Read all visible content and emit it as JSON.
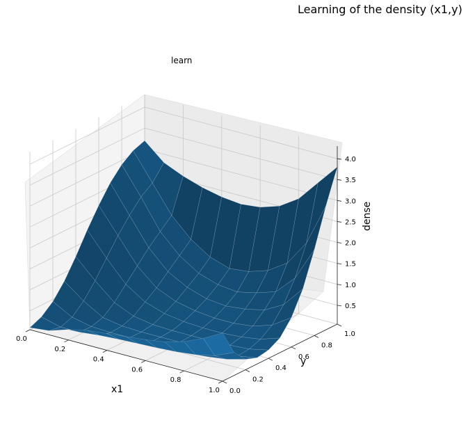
{
  "figure": {
    "suptitle": "Learning of the density (x1,y)",
    "axes_title": "learn"
  },
  "chart_data": {
    "type": "surface3d",
    "title": "learn",
    "xlabel": "x1",
    "ylabel": "y",
    "zlabel": "dense",
    "xlim": [
      0.0,
      1.0
    ],
    "ylim": [
      0.0,
      1.0
    ],
    "zlim": [
      0.05,
      4.3
    ],
    "x_ticks": [
      "0.0",
      "0.2",
      "0.4",
      "0.6",
      "0.8",
      "1.0"
    ],
    "y_ticks": [
      "0.0",
      "0.2",
      "0.4",
      "0.6",
      "0.8",
      "1.0"
    ],
    "z_ticks": [
      "0.5",
      "1.0",
      "1.5",
      "2.0",
      "2.5",
      "3.0",
      "3.5",
      "4.0"
    ],
    "grid": true,
    "surface_color": "#1f77b4",
    "x_grid": [
      0.0,
      0.1,
      0.2,
      0.3,
      0.4,
      0.5,
      0.6,
      0.7,
      0.8,
      0.9,
      1.0
    ],
    "y_grid": [
      0.0,
      0.1,
      0.2,
      0.3,
      0.4,
      0.5,
      0.6,
      0.7,
      0.8,
      0.9,
      1.0
    ],
    "z": [
      [
        0.1,
        0.22,
        0.45,
        0.8,
        1.25,
        1.75,
        2.2,
        2.6,
        2.9,
        3.1,
        3.2
      ],
      [
        0.15,
        0.1,
        0.2,
        0.45,
        0.8,
        1.2,
        1.6,
        1.95,
        2.25,
        2.45,
        2.8
      ],
      [
        0.3,
        0.1,
        0.1,
        0.18,
        0.4,
        0.7,
        1.0,
        1.3,
        1.55,
        1.8,
        2.6
      ],
      [
        0.4,
        0.15,
        0.08,
        0.1,
        0.2,
        0.4,
        0.6,
        0.85,
        1.1,
        1.35,
        2.45
      ],
      [
        0.45,
        0.18,
        0.08,
        0.08,
        0.12,
        0.25,
        0.4,
        0.6,
        0.8,
        1.05,
        2.35
      ],
      [
        0.5,
        0.2,
        0.08,
        0.08,
        0.1,
        0.18,
        0.3,
        0.45,
        0.65,
        0.9,
        2.3
      ],
      [
        0.55,
        0.22,
        0.08,
        0.08,
        0.1,
        0.15,
        0.25,
        0.4,
        0.6,
        0.95,
        2.35
      ],
      [
        0.62,
        0.25,
        0.1,
        0.08,
        0.1,
        0.15,
        0.25,
        0.45,
        0.7,
        1.1,
        2.5
      ],
      [
        0.75,
        0.3,
        0.12,
        0.1,
        0.12,
        0.18,
        0.3,
        0.55,
        0.85,
        1.4,
        2.8
      ],
      [
        0.95,
        0.4,
        0.18,
        0.12,
        0.15,
        0.25,
        0.45,
        0.8,
        1.3,
        2.0,
        3.3
      ],
      [
        1.2,
        0.6,
        0.3,
        0.2,
        0.25,
        0.4,
        0.75,
        1.3,
        2.1,
        3.0,
        3.8
      ]
    ]
  }
}
